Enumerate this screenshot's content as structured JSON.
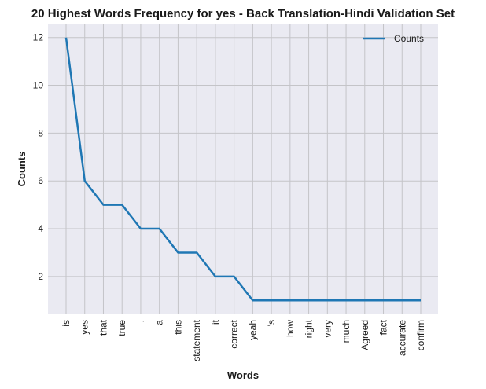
{
  "chart_data": {
    "type": "line",
    "title": "20 Highest Words Frequency for yes - Back Translation-Hindi Validation Set",
    "xlabel": "Words",
    "ylabel": "Counts",
    "categories": [
      "is",
      "yes",
      "that",
      "true",
      ",",
      "a",
      "this",
      "statement",
      "it",
      "correct",
      "yeah",
      "'s",
      "how",
      "right",
      "very",
      "much",
      "Agreed",
      "fact",
      "accurate",
      "confirm"
    ],
    "series": [
      {
        "name": "Counts",
        "values": [
          12,
          6,
          5,
          5,
          4,
          4,
          3,
          3,
          2,
          2,
          1,
          1,
          1,
          1,
          1,
          1,
          1,
          1,
          1,
          1
        ],
        "color": "#1f77b4"
      }
    ],
    "ylim": [
      0.45,
      12.55
    ],
    "yticks": [
      2,
      4,
      6,
      8,
      10,
      12
    ],
    "grid": true,
    "legend": "top-right",
    "background_color": "#eaeaf2"
  }
}
